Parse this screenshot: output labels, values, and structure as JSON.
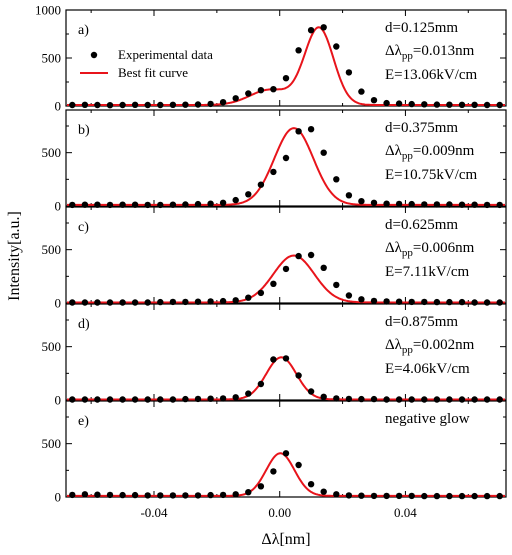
{
  "chart_data": {
    "type": "scatter",
    "xlabel": "Δλ[nm]",
    "ylabel": "Intensity[a.u.]",
    "xlim": [
      -0.068,
      0.072
    ],
    "x_ticks": [
      -0.04,
      0.0,
      0.04
    ],
    "x_tick_labels": [
      "-0.04",
      "0.00",
      "0.04"
    ],
    "grid": false,
    "legend": {
      "placement": "top-left of panel a",
      "entries": [
        {
          "label": "Experimental data",
          "marker": "black-dot"
        },
        {
          "label": "Best fit curve",
          "marker": "red-line"
        }
      ]
    },
    "colors": {
      "experimental": "#000000",
      "fit": "#e8141b"
    },
    "panels": [
      {
        "label": "a)",
        "ylim": [
          0,
          1000
        ],
        "y_ticks": [
          0,
          500,
          1000
        ],
        "y_tick_labels": [
          "0",
          "500",
          "1000"
        ],
        "annotation": {
          "d": "d=0.125mm",
          "dl_prefix": "Δλ",
          "dl_sub": "pp",
          "dl_value": "=0.013nm",
          "E": "E=13.06kV/cm"
        },
        "series": [
          {
            "name": "Experimental data",
            "x": [
              -0.066,
              -0.062,
              -0.058,
              -0.054,
              -0.05,
              -0.046,
              -0.042,
              -0.038,
              -0.034,
              -0.03,
              -0.026,
              -0.022,
              -0.018,
              -0.014,
              -0.01,
              -0.006,
              -0.002,
              0.002,
              0.006,
              0.01,
              0.014,
              0.018,
              0.022,
              0.026,
              0.03,
              0.034,
              0.038,
              0.042,
              0.046,
              0.05,
              0.054,
              0.058,
              0.062,
              0.066,
              0.07
            ],
            "y": [
              10,
              12,
              10,
              8,
              10,
              12,
              10,
              10,
              12,
              14,
              16,
              22,
              40,
              80,
              130,
              165,
              175,
              290,
              580,
              790,
              820,
              620,
              350,
              150,
              60,
              30,
              25,
              20,
              18,
              15,
              14,
              12,
              12,
              10,
              10
            ]
          },
          {
            "name": "Best fit curve",
            "peaks": [
              {
                "center": 0.0125,
                "amplitude": 800,
                "sigma": 0.0046
              },
              {
                "center": -0.003,
                "amplitude": 160,
                "sigma": 0.0065
              }
            ],
            "baseline": 10
          }
        ]
      },
      {
        "label": "b)",
        "ylim": [
          0,
          900
        ],
        "y_ticks": [
          0,
          500
        ],
        "y_tick_labels": [
          "0",
          "500"
        ],
        "annotation": {
          "d": "d=0.375mm",
          "dl_prefix": "Δλ",
          "dl_sub": "pp",
          "dl_value": "=0.009nm",
          "E": "E=10.75kV/cm"
        },
        "series": [
          {
            "name": "Experimental data",
            "x": [
              -0.066,
              -0.062,
              -0.058,
              -0.054,
              -0.05,
              -0.046,
              -0.042,
              -0.038,
              -0.034,
              -0.03,
              -0.026,
              -0.022,
              -0.018,
              -0.014,
              -0.01,
              -0.006,
              -0.002,
              0.002,
              0.006,
              0.01,
              0.014,
              0.018,
              0.022,
              0.026,
              0.03,
              0.034,
              0.038,
              0.042,
              0.046,
              0.05,
              0.054,
              0.058,
              0.062,
              0.066,
              0.07
            ],
            "y": [
              10,
              12,
              12,
              10,
              12,
              12,
              10,
              10,
              12,
              14,
              18,
              22,
              30,
              55,
              110,
              200,
              320,
              450,
              700,
              720,
              500,
              250,
              100,
              45,
              30,
              22,
              20,
              18,
              15,
              15,
              14,
              12,
              12,
              10,
              10
            ]
          },
          {
            "name": "Best fit curve",
            "peaks": [
              {
                "center": 0.0045,
                "amplitude": 720,
                "sigma": 0.0062
              }
            ],
            "baseline": 10
          }
        ]
      },
      {
        "label": "c)",
        "ylim": [
          0,
          900
        ],
        "y_ticks": [
          0,
          500
        ],
        "y_tick_labels": [
          "0",
          "500"
        ],
        "annotation": {
          "d": "d=0.625mm",
          "dl_prefix": "Δλ",
          "dl_sub": "pp",
          "dl_value": "=0.006nm",
          "E": "E=7.11kV/cm"
        },
        "series": [
          {
            "name": "Experimental data",
            "x": [
              -0.066,
              -0.062,
              -0.058,
              -0.054,
              -0.05,
              -0.046,
              -0.042,
              -0.038,
              -0.034,
              -0.03,
              -0.026,
              -0.022,
              -0.018,
              -0.014,
              -0.01,
              -0.006,
              -0.002,
              0.002,
              0.006,
              0.01,
              0.014,
              0.018,
              0.022,
              0.026,
              0.03,
              0.034,
              0.038,
              0.042,
              0.046,
              0.05,
              0.054,
              0.058,
              0.062,
              0.066,
              0.07
            ],
            "y": [
              5,
              5,
              5,
              5,
              5,
              5,
              5,
              8,
              10,
              10,
              12,
              15,
              18,
              25,
              50,
              95,
              180,
              320,
              440,
              450,
              330,
              170,
              70,
              35,
              20,
              15,
              12,
              10,
              10,
              8,
              8,
              8,
              5,
              5,
              5
            ]
          },
          {
            "name": "Best fit curve",
            "peaks": [
              {
                "center": 0.0045,
                "amplitude": 440,
                "sigma": 0.0065
              }
            ],
            "baseline": 5
          }
        ]
      },
      {
        "label": "d)",
        "ylim": [
          0,
          900
        ],
        "y_ticks": [
          0,
          500
        ],
        "y_tick_labels": [
          "0",
          "500"
        ],
        "annotation": {
          "d": "d=0.875mm",
          "dl_prefix": "Δλ",
          "dl_sub": "pp",
          "dl_value": "=0.002nm",
          "E": "E=4.06kV/cm"
        },
        "series": [
          {
            "name": "Experimental data",
            "x": [
              -0.066,
              -0.062,
              -0.058,
              -0.054,
              -0.05,
              -0.046,
              -0.042,
              -0.038,
              -0.034,
              -0.03,
              -0.026,
              -0.022,
              -0.018,
              -0.014,
              -0.01,
              -0.006,
              -0.002,
              0.002,
              0.006,
              0.01,
              0.014,
              0.018,
              0.022,
              0.026,
              0.03,
              0.034,
              0.038,
              0.042,
              0.046,
              0.05,
              0.054,
              0.058,
              0.062,
              0.066,
              0.07
            ],
            "y": [
              5,
              5,
              5,
              5,
              5,
              5,
              5,
              5,
              5,
              8,
              10,
              12,
              15,
              25,
              60,
              150,
              380,
              390,
              230,
              80,
              30,
              15,
              10,
              8,
              8,
              5,
              5,
              5,
              5,
              5,
              5,
              5,
              5,
              5,
              5
            ]
          },
          {
            "name": "Best fit curve",
            "peaks": [
              {
                "center": 0.0005,
                "amplitude": 395,
                "sigma": 0.0048
              }
            ],
            "baseline": 5
          }
        ]
      },
      {
        "label": "e)",
        "ylim": [
          0,
          900
        ],
        "y_ticks": [
          0,
          500
        ],
        "y_tick_labels": [
          "0",
          "500"
        ],
        "annotation": {
          "text": "negative glow"
        },
        "series": [
          {
            "name": "Experimental data",
            "x": [
              -0.066,
              -0.062,
              -0.058,
              -0.054,
              -0.05,
              -0.046,
              -0.042,
              -0.038,
              -0.034,
              -0.03,
              -0.026,
              -0.022,
              -0.018,
              -0.014,
              -0.01,
              -0.006,
              -0.002,
              0.002,
              0.006,
              0.01,
              0.014,
              0.018,
              0.022,
              0.026,
              0.03,
              0.034,
              0.038,
              0.042,
              0.046,
              0.05,
              0.054,
              0.058,
              0.062,
              0.066,
              0.07
            ],
            "y": [
              20,
              25,
              22,
              20,
              18,
              18,
              15,
              15,
              15,
              15,
              15,
              18,
              20,
              25,
              45,
              100,
              240,
              410,
              300,
              120,
              50,
              25,
              15,
              12,
              10,
              10,
              10,
              10,
              8,
              8,
              8,
              8,
              8,
              8,
              8
            ]
          },
          {
            "name": "Best fit curve",
            "peaks": [
              {
                "center": 0.0002,
                "amplitude": 400,
                "sigma": 0.0045
              }
            ],
            "baseline": 10
          }
        ]
      }
    ]
  }
}
